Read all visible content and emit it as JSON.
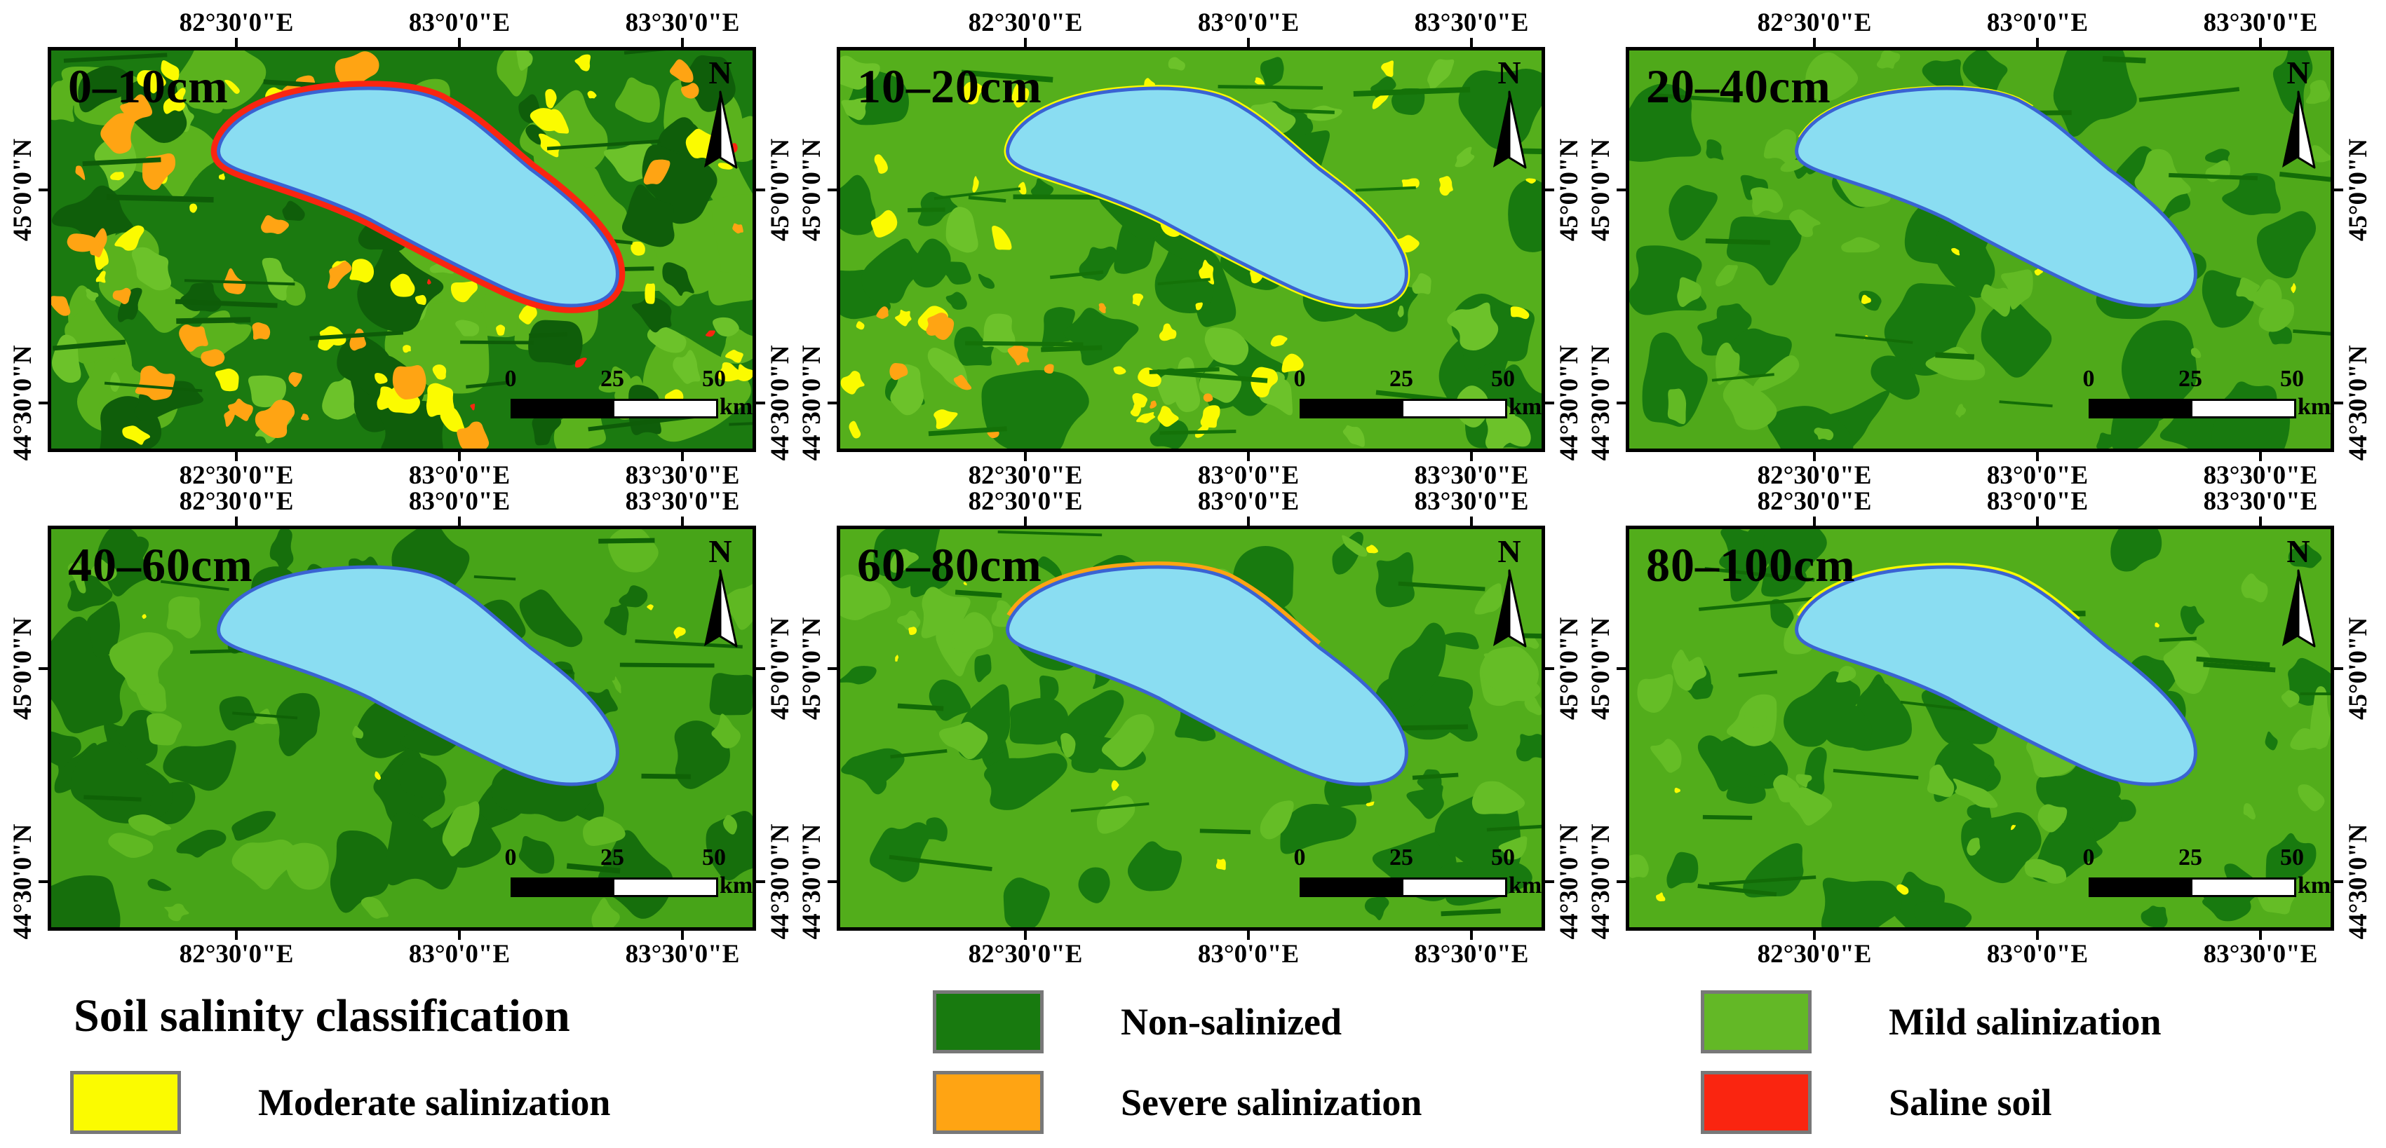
{
  "figure": {
    "type": "soil-salinity-depth-maps"
  },
  "panels": [
    {
      "depth_label": "0–10cm"
    },
    {
      "depth_label": "10–20cm"
    },
    {
      "depth_label": "20–40cm"
    },
    {
      "depth_label": "40–60cm"
    },
    {
      "depth_label": "60–80cm"
    },
    {
      "depth_label": "80–100cm"
    }
  ],
  "axes": {
    "longitude_labels": [
      "82°30'0\"E",
      "83°0'0\"E",
      "83°30'0\"E"
    ],
    "latitude_labels": [
      "45°0'0\"N",
      "44°30'0\"N"
    ]
  },
  "scale_bar": {
    "tick_labels": [
      "0",
      "25",
      "50"
    ],
    "unit_label": "km"
  },
  "compass": {
    "north_label": "N"
  },
  "map_colors": {
    "lake_fill": "#8ADDF2",
    "lake_outline": "#3A63D3"
  },
  "legend": {
    "title": "Soil salinity classification",
    "items": [
      {
        "label": "Non-salinized",
        "color": "#187A0F"
      },
      {
        "label": "Mild salinization",
        "color": "#63B826"
      },
      {
        "label": "Moderate salinization",
        "color": "#FBFB00"
      },
      {
        "label": "Severe salinization",
        "color": "#FFA413"
      },
      {
        "label": "Saline soil",
        "color": "#FA2510"
      }
    ]
  }
}
